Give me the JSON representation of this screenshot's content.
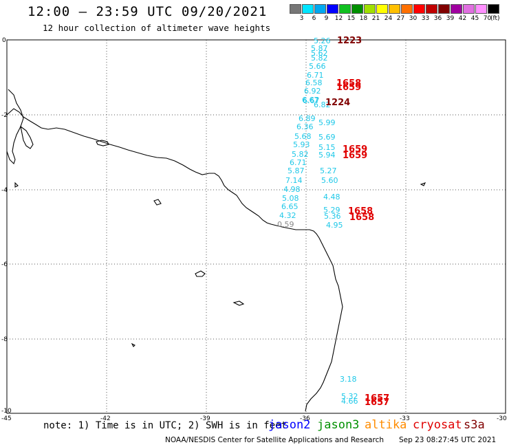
{
  "header": {
    "title": "12:00 – 23:59 UTC 09/20/2021",
    "subtitle": "12 hour collection of altimeter wave heights"
  },
  "color_scale": {
    "colors": [
      "#777777",
      "#00e5ff",
      "#00a8f0",
      "#0000ff",
      "#10c020",
      "#009000",
      "#a0e000",
      "#ffff00",
      "#ffc000",
      "#ff7000",
      "#ff0000",
      "#c00000",
      "#800000",
      "#a000a0",
      "#e070e0",
      "#ff90ff",
      "#000000"
    ],
    "labels": [
      "3",
      "6",
      "9",
      "12",
      "15",
      "18",
      "21",
      "24",
      "27",
      "30",
      "33",
      "36",
      "39",
      "42",
      "45",
      "70"
    ],
    "unit": "(ft)"
  },
  "axes": {
    "y_ticks": [
      "0",
      "-2",
      "-4",
      "-6",
      "-8",
      "-10"
    ],
    "x_ticks": [
      "-45",
      "-42",
      "-39",
      "-36",
      "-33",
      "-30"
    ]
  },
  "observations": [
    {
      "v": "5.26",
      "c": "cyan"
    },
    {
      "v": "5.87",
      "c": "cyan"
    },
    {
      "v": "5.62",
      "c": "cyan"
    },
    {
      "v": "5.82",
      "c": "cyan"
    },
    {
      "v": "5.66",
      "c": "cyan"
    },
    {
      "v": "6.71",
      "c": "cyan"
    },
    {
      "v": "6.58",
      "c": "cyan"
    },
    {
      "v": "6.92",
      "c": "cyan"
    },
    {
      "v": "6.67",
      "c": "cyan"
    },
    {
      "v": "6.82",
      "c": "cyan"
    },
    {
      "v": "6.67",
      "c": "cyan"
    },
    {
      "v": "6.89",
      "c": "cyan"
    },
    {
      "v": "6.36",
      "c": "cyan"
    },
    {
      "v": "5.68",
      "c": "cyan"
    },
    {
      "v": "5.99",
      "c": "cyan"
    },
    {
      "v": "5.93",
      "c": "cyan"
    },
    {
      "v": "5.69",
      "c": "cyan"
    },
    {
      "v": "5.15",
      "c": "cyan"
    },
    {
      "v": "5.82",
      "c": "cyan"
    },
    {
      "v": "5.94",
      "c": "cyan"
    },
    {
      "v": "6.71",
      "c": "cyan"
    },
    {
      "v": "5.87",
      "c": "cyan"
    },
    {
      "v": "5.27",
      "c": "cyan"
    },
    {
      "v": "7.14",
      "c": "cyan"
    },
    {
      "v": "5.60",
      "c": "cyan"
    },
    {
      "v": "4.98",
      "c": "cyan"
    },
    {
      "v": "4.48",
      "c": "cyan"
    },
    {
      "v": "5.08",
      "c": "cyan"
    },
    {
      "v": "6.65",
      "c": "cyan"
    },
    {
      "v": "5.29",
      "c": "cyan"
    },
    {
      "v": "4.32",
      "c": "cyan"
    },
    {
      "v": "5.36",
      "c": "cyan"
    },
    {
      "v": "0.59",
      "c": "gray"
    },
    {
      "v": "4.95",
      "c": "cyan"
    },
    {
      "v": "3.18",
      "c": "cyan"
    },
    {
      "v": "5.32",
      "c": "cyan"
    },
    {
      "v": "4.66",
      "c": "cyan"
    }
  ],
  "pass_times": [
    {
      "t": "1223",
      "c": "#800000"
    },
    {
      "t": "1658",
      "c": "#e00000"
    },
    {
      "t": "1659",
      "c": "#e00000"
    },
    {
      "t": "1224",
      "c": "#800000"
    },
    {
      "t": "1659",
      "c": "#e00000"
    },
    {
      "t": "1659",
      "c": "#e00000"
    },
    {
      "t": "1658",
      "c": "#e00000"
    },
    {
      "t": "1658",
      "c": "#e00000"
    },
    {
      "t": "1657",
      "c": "#e00000"
    },
    {
      "t": "1657",
      "c": "#e00000"
    }
  ],
  "footer": {
    "note": "note: 1) Time is in UTC; 2) SWH is in feet",
    "satellites": [
      {
        "name": "jason2",
        "color": "#0000ff"
      },
      {
        "name": "jason3",
        "color": "#009000"
      },
      {
        "name": "altika",
        "color": "#ff8c00"
      },
      {
        "name": "cryosat",
        "color": "#e00000"
      },
      {
        "name": "s3a",
        "color": "#800000"
      }
    ],
    "credit": "NOAA/NESDIS Center for Satellite Applications and Research",
    "stamp": "Sep 23 08:27:45 UTC 2021"
  }
}
